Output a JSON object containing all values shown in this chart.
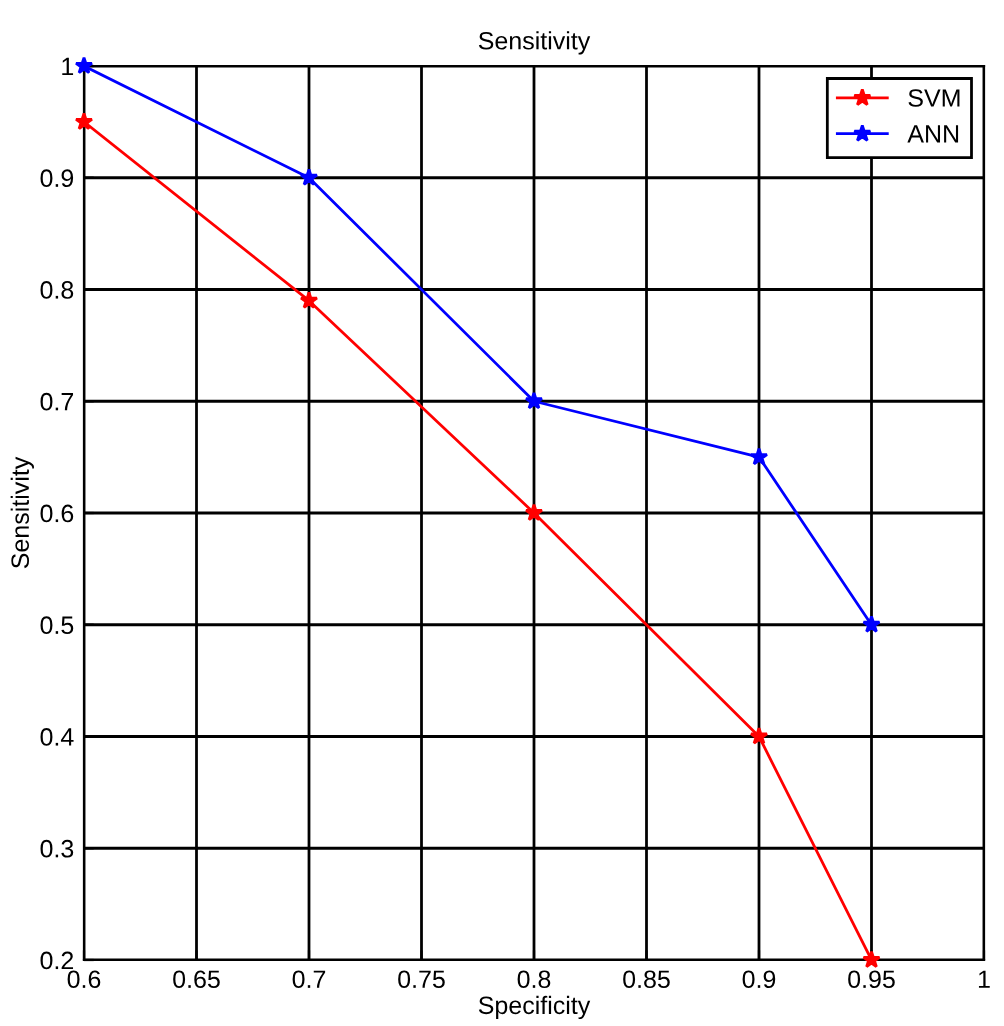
{
  "chart_data": {
    "type": "line",
    "title": "Sensitivity",
    "xlabel": "Specificity",
    "ylabel": "Sensitivity",
    "x": [
      0.6,
      0.7,
      0.8,
      0.9,
      0.95
    ],
    "series": [
      {
        "name": "SVM",
        "color": "#ff0000",
        "values": [
          0.95,
          0.79,
          0.6,
          0.4,
          0.2
        ]
      },
      {
        "name": "ANN",
        "color": "#0000ff",
        "values": [
          1.0,
          0.9,
          0.7,
          0.65,
          0.5
        ]
      }
    ],
    "xlim": [
      0.6,
      1
    ],
    "xticks": [
      0.6,
      0.65,
      0.7,
      0.75,
      0.8,
      0.85,
      0.9,
      0.95,
      1
    ],
    "ylim": [
      0.2,
      1
    ],
    "yticks": [
      0.2,
      0.3,
      0.4,
      0.5,
      0.6,
      0.7,
      0.8,
      0.9,
      1
    ],
    "grid": true,
    "legend": "top right",
    "marker": "star",
    "line_style": "solid"
  }
}
